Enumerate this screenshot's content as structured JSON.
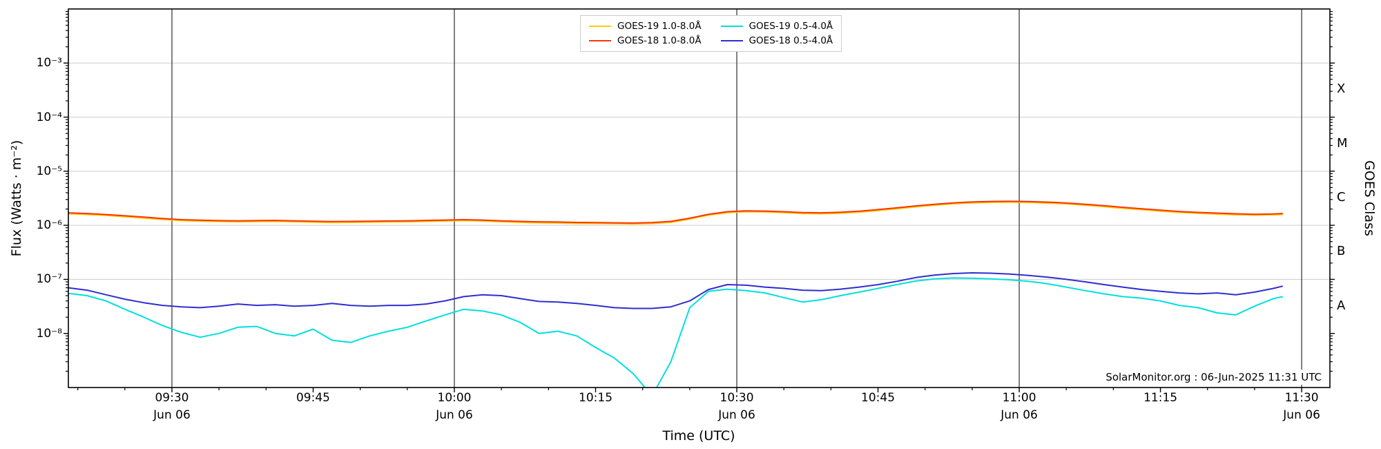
{
  "chart_data": {
    "type": "line",
    "xlabel": "Time (UTC)",
    "ylabel": "Flux (Watts · m⁻²)",
    "ylabel_right": "GOES Class",
    "watermark": "SolarMonitor.org : 06-Jun-2025 11:31 UTC",
    "y_scale_type": "log",
    "ylim": [
      1e-09,
      0.01
    ],
    "xlim_minutes_after_0900": [
      19,
      153
    ],
    "x_minor_step_minutes": 5,
    "x_ticks": [
      {
        "m": 30,
        "label": "09:30",
        "date": "Jun 06"
      },
      {
        "m": 45,
        "label": "09:45"
      },
      {
        "m": 60,
        "label": "10:00",
        "date": "Jun 06"
      },
      {
        "m": 75,
        "label": "10:15"
      },
      {
        "m": 90,
        "label": "10:30",
        "date": "Jun 06"
      },
      {
        "m": 105,
        "label": "10:45"
      },
      {
        "m": 120,
        "label": "11:00",
        "date": "Jun 06"
      },
      {
        "m": 135,
        "label": "11:15"
      },
      {
        "m": 150,
        "label": "11:30",
        "date": "Jun 06"
      }
    ],
    "y_ticks": [
      {
        "v": 0.001,
        "label": "10⁻³"
      },
      {
        "v": 0.0001,
        "label": "10⁻⁴"
      },
      {
        "v": 1e-05,
        "label": "10⁻⁵"
      },
      {
        "v": 1e-06,
        "label": "10⁻⁶"
      },
      {
        "v": 1e-07,
        "label": "10⁻⁷"
      },
      {
        "v": 1e-08,
        "label": "10⁻⁸"
      }
    ],
    "goes_class_labels": [
      {
        "label": "X",
        "v": 0.0003162
      },
      {
        "label": "M",
        "v": 3.162e-05
      },
      {
        "label": "C",
        "v": 3.162e-06
      },
      {
        "label": "B",
        "v": 3.162e-07
      },
      {
        "label": "A",
        "v": 3.162e-08
      }
    ],
    "grid": {
      "vertical_minutes": [
        30,
        60,
        90,
        120,
        150
      ],
      "horizontal_values": [
        0.001,
        0.0001,
        1e-05,
        1e-06,
        1e-07
      ],
      "vertical_color": "#3c3c3c",
      "horizontal_color": "#cccccc"
    },
    "legend": {
      "position": "top-center",
      "entries": [
        {
          "label": "GOES-19 1.0-8.0Å",
          "color": "#ffcc00"
        },
        {
          "label": "GOES-18 1.0-8.0Å",
          "color": "#ff3200"
        },
        {
          "label": "GOES-19 0.5-4.0Å",
          "color": "#00dfdf"
        },
        {
          "label": "GOES-18 0.5-4.0Å",
          "color": "#2e2ecf"
        }
      ]
    },
    "x_minutes": [
      19,
      21,
      23,
      25,
      27,
      29,
      31,
      33,
      35,
      37,
      39,
      41,
      43,
      45,
      47,
      49,
      51,
      53,
      55,
      57,
      59,
      61,
      63,
      65,
      67,
      69,
      71,
      73,
      75,
      77,
      79,
      81,
      83,
      85,
      87,
      89,
      91,
      93,
      95,
      97,
      99,
      101,
      103,
      105,
      107,
      109,
      111,
      113,
      115,
      117,
      119,
      121,
      123,
      125,
      127,
      129,
      131,
      133,
      135,
      137,
      139,
      141,
      143,
      145,
      147,
      148
    ],
    "series": [
      {
        "name": "GOES-19 1.0-8.0Å",
        "color": "#ffcc00",
        "y_scale": 1e-06,
        "values": [
          1.63,
          1.58,
          1.52,
          1.44,
          1.36,
          1.28,
          1.22,
          1.19,
          1.17,
          1.16,
          1.17,
          1.18,
          1.16,
          1.14,
          1.12,
          1.13,
          1.14,
          1.15,
          1.16,
          1.18,
          1.2,
          1.22,
          1.2,
          1.16,
          1.13,
          1.11,
          1.1,
          1.08,
          1.08,
          1.07,
          1.06,
          1.08,
          1.13,
          1.3,
          1.54,
          1.71,
          1.78,
          1.76,
          1.71,
          1.65,
          1.63,
          1.67,
          1.75,
          1.87,
          2.02,
          2.19,
          2.35,
          2.5,
          2.59,
          2.65,
          2.67,
          2.64,
          2.57,
          2.48,
          2.35,
          2.21,
          2.06,
          1.94,
          1.82,
          1.73,
          1.66,
          1.61,
          1.56,
          1.54,
          1.56,
          1.58
        ]
      },
      {
        "name": "GOES-18 1.0-8.0Å",
        "color": "#ff3200",
        "y_scale": 1e-06,
        "values": [
          1.7,
          1.65,
          1.58,
          1.5,
          1.42,
          1.33,
          1.27,
          1.24,
          1.22,
          1.21,
          1.22,
          1.23,
          1.21,
          1.19,
          1.17,
          1.18,
          1.19,
          1.2,
          1.21,
          1.23,
          1.25,
          1.27,
          1.25,
          1.21,
          1.18,
          1.16,
          1.15,
          1.13,
          1.12,
          1.11,
          1.1,
          1.12,
          1.18,
          1.35,
          1.6,
          1.78,
          1.85,
          1.83,
          1.78,
          1.72,
          1.7,
          1.74,
          1.82,
          1.95,
          2.1,
          2.28,
          2.45,
          2.6,
          2.7,
          2.76,
          2.78,
          2.75,
          2.68,
          2.58,
          2.45,
          2.3,
          2.15,
          2.02,
          1.9,
          1.8,
          1.73,
          1.68,
          1.63,
          1.6,
          1.62,
          1.65
        ]
      },
      {
        "name": "GOES-19 0.5-4.0Å",
        "color": "#00dfdf",
        "y_scale": 1e-08,
        "values": [
          5.5,
          5.0,
          4.0,
          2.8,
          2.0,
          1.4,
          1.05,
          0.85,
          1.0,
          1.3,
          1.35,
          1.0,
          0.9,
          1.2,
          0.75,
          0.68,
          0.9,
          1.1,
          1.3,
          1.7,
          2.2,
          2.8,
          2.6,
          2.2,
          1.6,
          1.0,
          1.1,
          0.9,
          0.55,
          0.35,
          0.18,
          0.07,
          0.3,
          3.0,
          6.0,
          6.6,
          6.2,
          5.6,
          4.6,
          3.8,
          4.2,
          5.0,
          5.8,
          6.8,
          8.0,
          9.3,
          10.2,
          10.6,
          10.5,
          10.2,
          9.8,
          9.2,
          8.3,
          7.2,
          6.2,
          5.4,
          4.8,
          4.5,
          4.0,
          3.3,
          3.0,
          2.4,
          2.2,
          3.2,
          4.4,
          4.8
        ]
      },
      {
        "name": "GOES-18 0.5-4.0Å",
        "color": "#2e2ecf",
        "y_scale": 1e-08,
        "values": [
          7.0,
          6.3,
          5.2,
          4.3,
          3.7,
          3.3,
          3.1,
          3.0,
          3.2,
          3.5,
          3.3,
          3.4,
          3.2,
          3.3,
          3.6,
          3.3,
          3.2,
          3.3,
          3.3,
          3.5,
          4.0,
          4.8,
          5.2,
          5.0,
          4.4,
          3.9,
          3.8,
          3.6,
          3.3,
          3.0,
          2.9,
          2.9,
          3.1,
          4.0,
          6.5,
          8.0,
          7.8,
          7.2,
          6.8,
          6.3,
          6.2,
          6.6,
          7.2,
          8.0,
          9.2,
          10.8,
          12.0,
          12.8,
          13.2,
          13.0,
          12.5,
          11.8,
          11.0,
          10.0,
          9.0,
          8.0,
          7.2,
          6.5,
          6.0,
          5.6,
          5.4,
          5.6,
          5.2,
          5.8,
          6.8,
          7.5
        ]
      }
    ]
  }
}
